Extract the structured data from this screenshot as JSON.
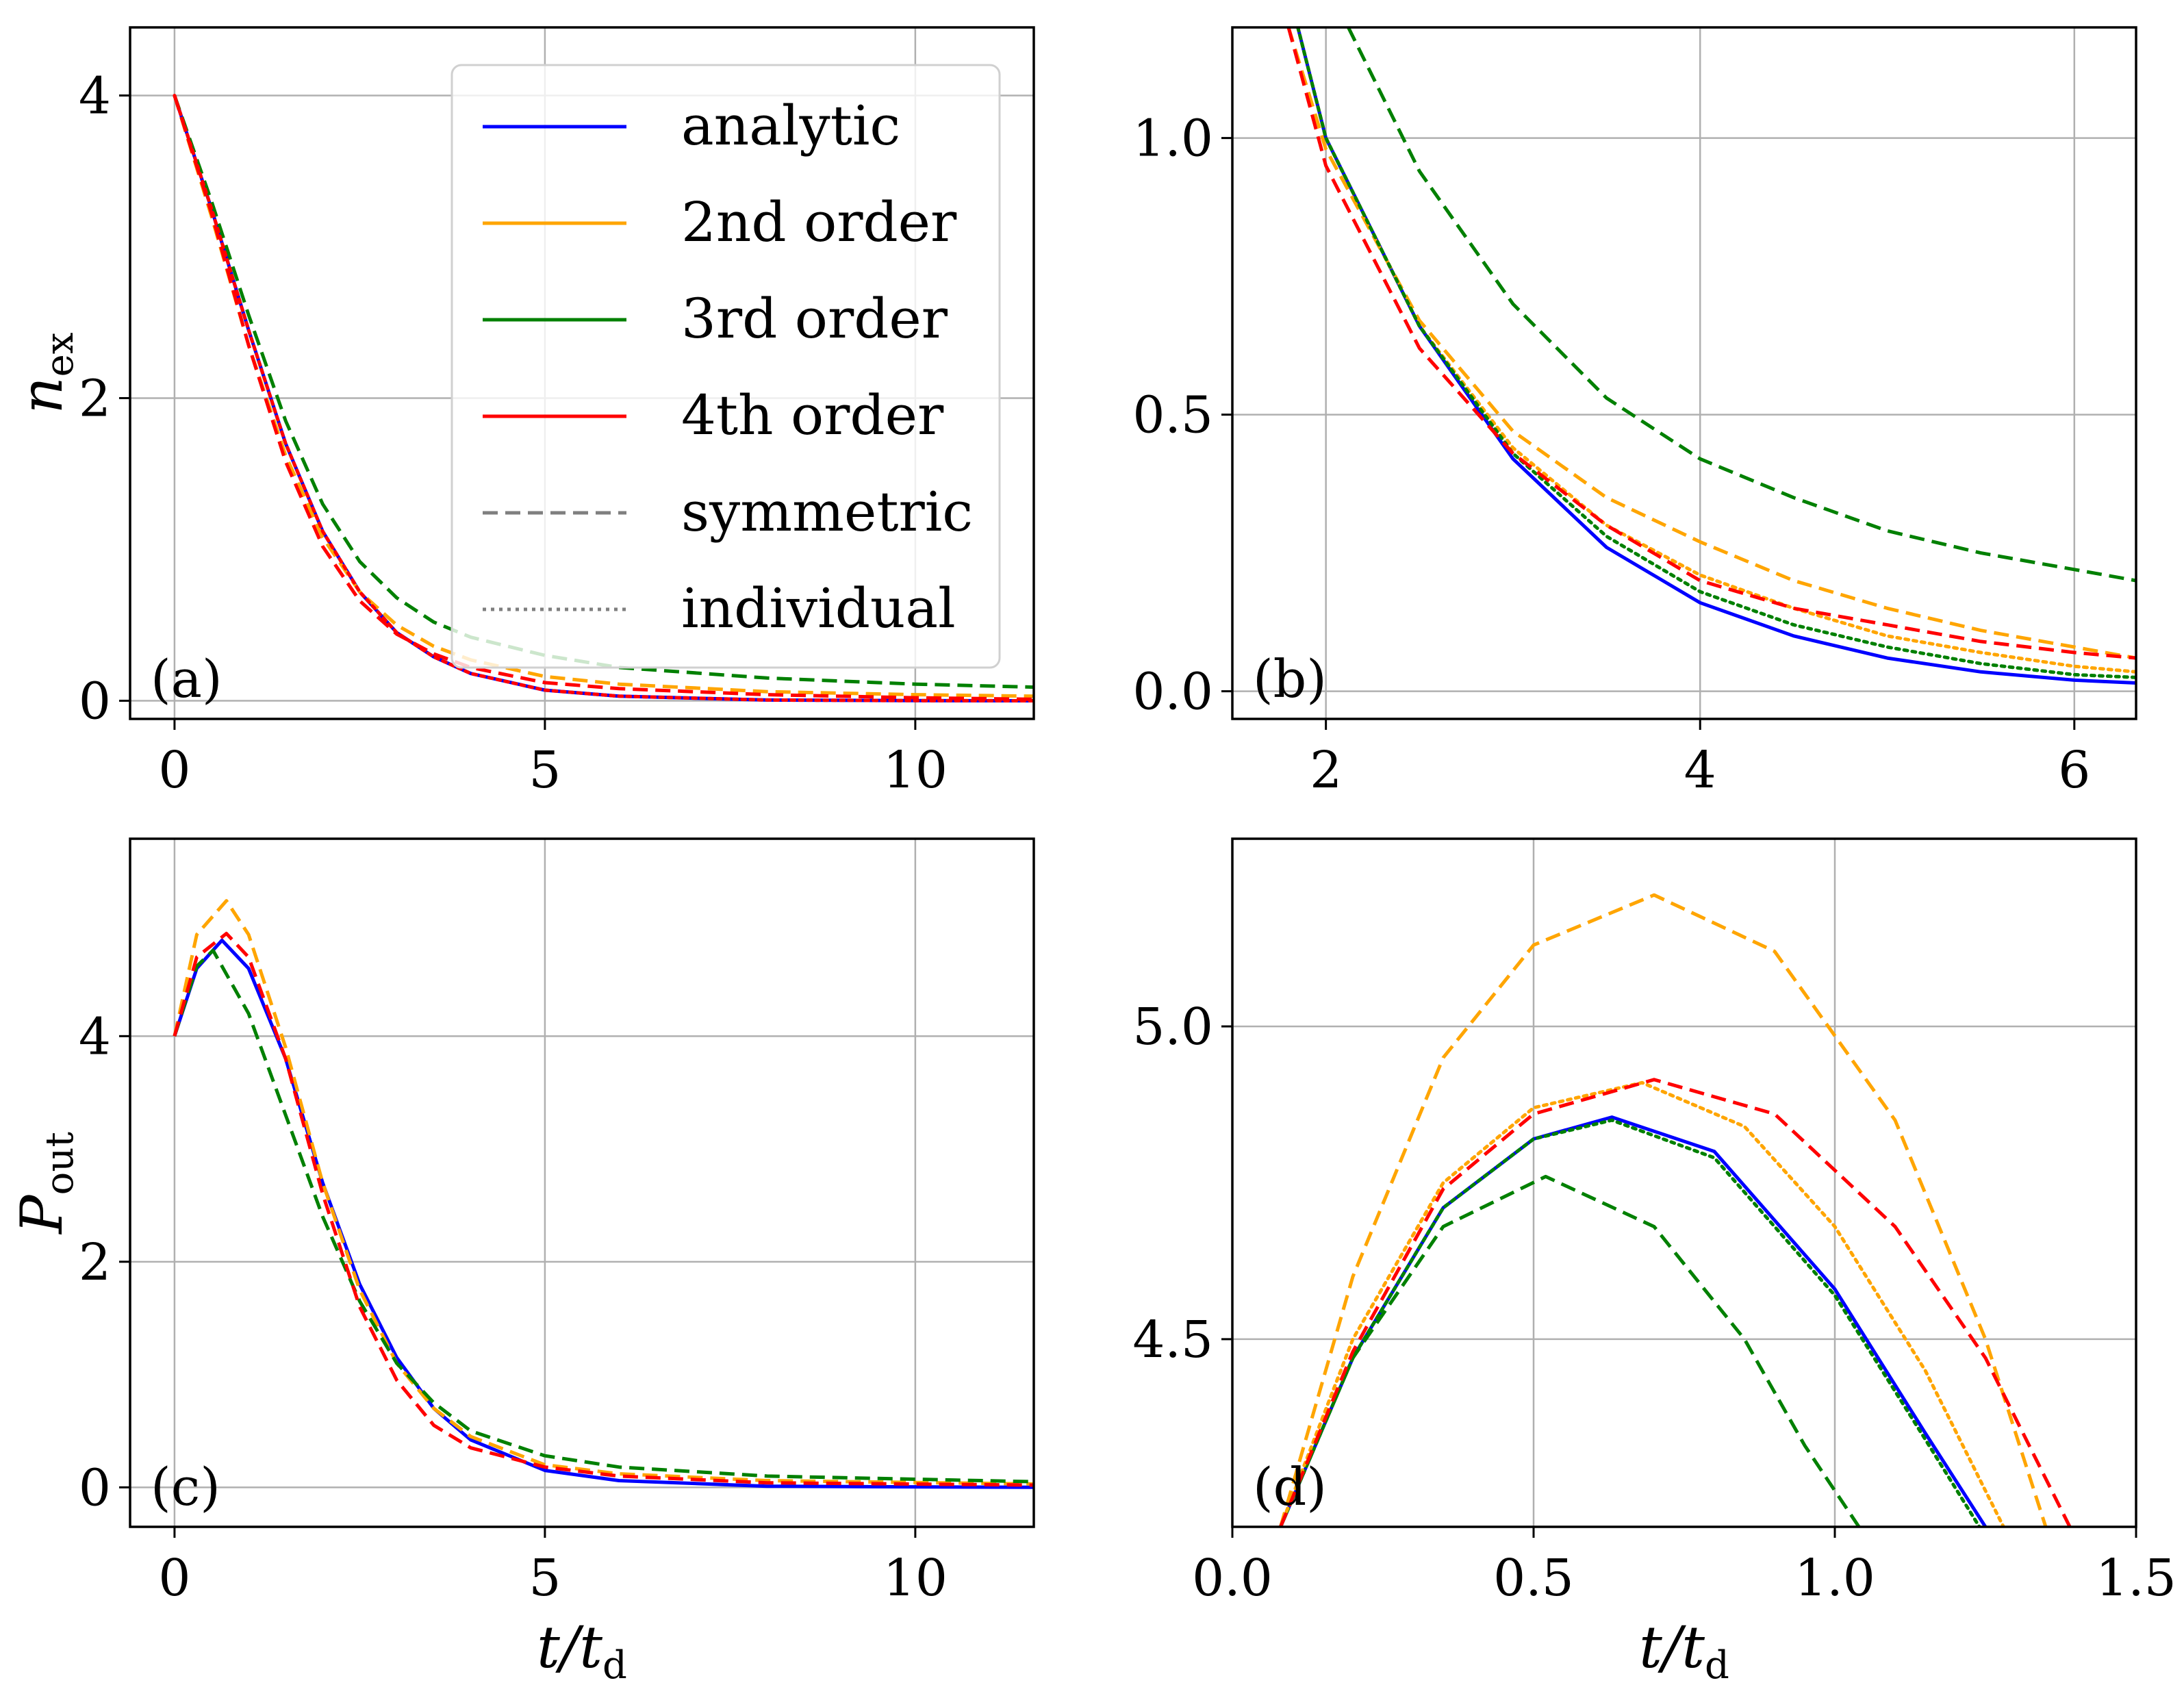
{
  "chart_data": [
    {
      "panel": "a",
      "type": "line",
      "panel_label": "(a)",
      "xlabel": "",
      "ylabel": "n",
      "ylabel_sub": "ex",
      "xlim": [
        -0.6,
        11.6
      ],
      "ylim": [
        -0.12,
        4.45
      ],
      "xticks": [
        0,
        5,
        10
      ],
      "xtick_labels": [
        "0",
        "5",
        "10"
      ],
      "yticks": [
        0,
        2,
        4
      ],
      "ytick_labels": [
        "0",
        "2",
        "4"
      ],
      "grid": true,
      "legend": {
        "position": "top-right",
        "entries": [
          {
            "label": "analytic",
            "color": "#0000ff",
            "style": "solid"
          },
          {
            "label": "2nd order",
            "color": "#ffa500",
            "style": "solid"
          },
          {
            "label": "3rd order",
            "color": "#008000",
            "style": "solid"
          },
          {
            "label": "4th order",
            "color": "#ff0000",
            "style": "solid"
          },
          {
            "label": "symmetric",
            "color": "#7f7f7f",
            "style": "dashed"
          },
          {
            "label": "individual",
            "color": "#7f7f7f",
            "style": "dotted"
          }
        ]
      },
      "series": [
        {
          "name": "analytic",
          "color": "#0000ff",
          "style": "solid",
          "x": [
            0,
            0.5,
            1,
            1.5,
            2,
            2.5,
            3,
            3.5,
            4,
            5,
            6,
            8,
            10,
            11.6
          ],
          "y": [
            4,
            3.25,
            2.45,
            1.7,
            1.12,
            0.72,
            0.45,
            0.29,
            0.18,
            0.07,
            0.03,
            0.005,
            0.001,
            0
          ]
        },
        {
          "name": "2nd order symmetric",
          "color": "#ffa500",
          "style": "dashed",
          "x": [
            0,
            0.5,
            1,
            1.5,
            2,
            2.5,
            3,
            3.5,
            4,
            5,
            6,
            8,
            10,
            11.6
          ],
          "y": [
            4,
            3.2,
            2.35,
            1.62,
            1.08,
            0.72,
            0.5,
            0.36,
            0.27,
            0.16,
            0.11,
            0.06,
            0.04,
            0.03
          ]
        },
        {
          "name": "3rd order symmetric",
          "color": "#008000",
          "style": "dashed",
          "x": [
            0,
            0.5,
            1,
            1.5,
            2,
            2.5,
            3,
            3.5,
            4,
            5,
            6,
            8,
            10,
            11.6
          ],
          "y": [
            4,
            3.3,
            2.55,
            1.85,
            1.3,
            0.92,
            0.68,
            0.52,
            0.42,
            0.3,
            0.22,
            0.15,
            0.11,
            0.09
          ]
        },
        {
          "name": "4th order symmetric",
          "color": "#ff0000",
          "style": "dashed",
          "x": [
            0,
            0.5,
            1,
            1.5,
            2,
            2.5,
            3,
            3.5,
            4,
            5,
            6,
            8,
            10,
            11.6
          ],
          "y": [
            4,
            3.22,
            2.35,
            1.58,
            1.02,
            0.66,
            0.44,
            0.31,
            0.22,
            0.12,
            0.08,
            0.04,
            0.02,
            0.01
          ]
        },
        {
          "name": "analytic (red dotted overlay)",
          "color": "#ff0000",
          "style": "dotted",
          "x": [
            0,
            0.5,
            1,
            1.5,
            2,
            2.5,
            3,
            3.5,
            4,
            5,
            6,
            8,
            10,
            11.6
          ],
          "y": [
            4,
            3.25,
            2.45,
            1.7,
            1.12,
            0.72,
            0.45,
            0.29,
            0.18,
            0.07,
            0.03,
            0.005,
            0.001,
            0
          ]
        }
      ]
    },
    {
      "panel": "b",
      "type": "line",
      "panel_label": "(b)",
      "xlabel": "",
      "ylabel": "",
      "xlim": [
        1.5,
        6.33
      ],
      "ylim": [
        -0.05,
        1.2
      ],
      "xticks": [
        2,
        4,
        6
      ],
      "xtick_labels": [
        "2",
        "4",
        "6"
      ],
      "yticks": [
        0.0,
        0.5,
        1.0
      ],
      "ytick_labels": [
        "0.0",
        "0.5",
        "1.0"
      ],
      "grid": true,
      "series": [
        {
          "name": "analytic",
          "color": "#0000ff",
          "style": "solid",
          "x": [
            1.85,
            2,
            2.5,
            3,
            3.5,
            4,
            4.5,
            5,
            5.5,
            6,
            6.33
          ],
          "y": [
            1.2,
            1.0,
            0.66,
            0.42,
            0.26,
            0.16,
            0.1,
            0.06,
            0.035,
            0.02,
            0.015
          ]
        },
        {
          "name": "2nd order symmetric",
          "color": "#ffa500",
          "style": "dashed",
          "x": [
            1.8,
            2,
            2.5,
            3,
            3.5,
            4,
            4.5,
            5,
            5.5,
            6,
            6.33
          ],
          "y": [
            1.2,
            0.98,
            0.67,
            0.47,
            0.35,
            0.27,
            0.2,
            0.15,
            0.11,
            0.08,
            0.06
          ]
        },
        {
          "name": "2nd order individual",
          "color": "#ffa500",
          "style": "dotted",
          "x": [
            1.85,
            2,
            2.5,
            3,
            3.5,
            4,
            4.5,
            5,
            5.5,
            6,
            6.33
          ],
          "y": [
            1.2,
            1.0,
            0.66,
            0.44,
            0.3,
            0.21,
            0.15,
            0.1,
            0.07,
            0.045,
            0.035
          ]
        },
        {
          "name": "3rd order symmetric",
          "color": "#008000",
          "style": "dashed",
          "x": [
            2.12,
            2.5,
            3,
            3.5,
            4,
            4.5,
            5,
            5.5,
            6,
            6.33
          ],
          "y": [
            1.2,
            0.94,
            0.7,
            0.53,
            0.42,
            0.35,
            0.29,
            0.25,
            0.22,
            0.2
          ]
        },
        {
          "name": "3rd order individual",
          "color": "#008000",
          "style": "dotted",
          "x": [
            1.85,
            2,
            2.5,
            3,
            3.5,
            4,
            4.5,
            5,
            5.5,
            6,
            6.33
          ],
          "y": [
            1.2,
            1.0,
            0.66,
            0.43,
            0.28,
            0.18,
            0.12,
            0.08,
            0.05,
            0.03,
            0.025
          ]
        },
        {
          "name": "4th order symmetric",
          "color": "#ff0000",
          "style": "dashed",
          "x": [
            1.8,
            2,
            2.5,
            3,
            3.5,
            4,
            4.5,
            5,
            5.5,
            6,
            6.33
          ],
          "y": [
            1.2,
            0.95,
            0.62,
            0.43,
            0.3,
            0.2,
            0.15,
            0.12,
            0.09,
            0.07,
            0.06
          ]
        }
      ]
    },
    {
      "panel": "c",
      "type": "line",
      "panel_label": "(c)",
      "xlabel": "t/t",
      "xlabel_sub": "d",
      "ylabel": "P",
      "ylabel_sub": "out",
      "xlim": [
        -0.6,
        11.6
      ],
      "ylim": [
        -0.35,
        5.75
      ],
      "xticks": [
        0,
        5,
        10
      ],
      "xtick_labels": [
        "0",
        "5",
        "10"
      ],
      "yticks": [
        0,
        2,
        4
      ],
      "ytick_labels": [
        "0",
        "2",
        "4"
      ],
      "grid": true,
      "series": [
        {
          "name": "analytic",
          "color": "#0000ff",
          "style": "solid",
          "x": [
            0,
            0.3,
            0.64,
            1,
            1.5,
            2,
            2.5,
            3,
            3.5,
            4,
            5,
            6,
            8,
            11.6
          ],
          "y": [
            4,
            4.6,
            4.85,
            4.6,
            3.8,
            2.7,
            1.8,
            1.15,
            0.7,
            0.42,
            0.15,
            0.06,
            0.01,
            0
          ]
        },
        {
          "name": "2nd order symmetric",
          "color": "#ffa500",
          "style": "dashed",
          "x": [
            0,
            0.3,
            0.7,
            1,
            1.5,
            2,
            2.5,
            3,
            3.5,
            4,
            5,
            6,
            8,
            11.6
          ],
          "y": [
            4,
            4.9,
            5.2,
            4.9,
            3.9,
            2.7,
            1.75,
            1.1,
            0.7,
            0.45,
            0.2,
            0.12,
            0.06,
            0.03
          ]
        },
        {
          "name": "3rd order symmetric",
          "color": "#008000",
          "style": "dashed",
          "x": [
            0,
            0.3,
            0.52,
            1,
            1.5,
            2,
            2.5,
            3,
            3.5,
            4,
            5,
            6,
            8,
            11.6
          ],
          "y": [
            4,
            4.62,
            4.76,
            4.2,
            3.3,
            2.4,
            1.65,
            1.1,
            0.75,
            0.5,
            0.28,
            0.18,
            0.1,
            0.05
          ]
        },
        {
          "name": "4th order symmetric",
          "color": "#ff0000",
          "style": "dashed",
          "x": [
            0,
            0.3,
            0.7,
            1,
            1.5,
            2,
            2.5,
            3,
            3.5,
            4,
            5,
            6,
            8,
            11.6
          ],
          "y": [
            4,
            4.7,
            4.91,
            4.7,
            3.8,
            2.6,
            1.6,
            0.95,
            0.55,
            0.35,
            0.18,
            0.1,
            0.04,
            0.02
          ]
        }
      ]
    },
    {
      "panel": "d",
      "type": "line",
      "panel_label": "(d)",
      "xlabel": "t/t",
      "xlabel_sub": "d",
      "ylabel": "",
      "xlim": [
        0.0,
        1.5
      ],
      "ylim": [
        4.2,
        5.3
      ],
      "xticks": [
        0.0,
        0.5,
        1.0,
        1.5
      ],
      "xtick_labels": [
        "0.0",
        "0.5",
        "1.0",
        "1.5"
      ],
      "yticks": [
        4.5,
        5.0
      ],
      "ytick_labels": [
        "4.5",
        "5.0"
      ],
      "grid": true,
      "series": [
        {
          "name": "analytic",
          "color": "#0000ff",
          "style": "solid",
          "x": [
            0.08,
            0.2,
            0.35,
            0.5,
            0.63,
            0.8,
            1.0,
            1.15,
            1.25
          ],
          "y": [
            4.2,
            4.47,
            4.71,
            4.82,
            4.855,
            4.8,
            4.58,
            4.35,
            4.2
          ]
        },
        {
          "name": "analytic (green dotted overlay)",
          "color": "#008000",
          "style": "dotted",
          "x": [
            0.08,
            0.2,
            0.35,
            0.5,
            0.63,
            0.8,
            1.0,
            1.15,
            1.24
          ],
          "y": [
            4.2,
            4.47,
            4.71,
            4.82,
            4.85,
            4.79,
            4.57,
            4.34,
            4.2
          ]
        },
        {
          "name": "2nd order symmetric",
          "color": "#ffa500",
          "style": "dashed",
          "x": [
            0.08,
            0.2,
            0.35,
            0.5,
            0.7,
            0.9,
            1.1,
            1.25,
            1.35
          ],
          "y": [
            4.2,
            4.6,
            4.95,
            5.13,
            5.21,
            5.12,
            4.85,
            4.5,
            4.2
          ]
        },
        {
          "name": "2nd order individual",
          "color": "#ffa500",
          "style": "dotted",
          "x": [
            0.08,
            0.2,
            0.35,
            0.5,
            0.68,
            0.85,
            1.0,
            1.15,
            1.28
          ],
          "y": [
            4.2,
            4.5,
            4.75,
            4.87,
            4.91,
            4.84,
            4.68,
            4.45,
            4.2
          ]
        },
        {
          "name": "3rd order symmetric",
          "color": "#008000",
          "style": "dashed",
          "x": [
            0.08,
            0.2,
            0.35,
            0.52,
            0.7,
            0.85,
            0.95,
            1.04
          ],
          "y": [
            4.2,
            4.47,
            4.68,
            4.76,
            4.68,
            4.5,
            4.33,
            4.2
          ]
        },
        {
          "name": "4th order symmetric",
          "color": "#ff0000",
          "style": "dashed",
          "x": [
            0.08,
            0.2,
            0.35,
            0.5,
            0.7,
            0.9,
            1.1,
            1.25,
            1.39
          ],
          "y": [
            4.2,
            4.48,
            4.74,
            4.86,
            4.915,
            4.86,
            4.68,
            4.47,
            4.2
          ]
        }
      ]
    }
  ]
}
